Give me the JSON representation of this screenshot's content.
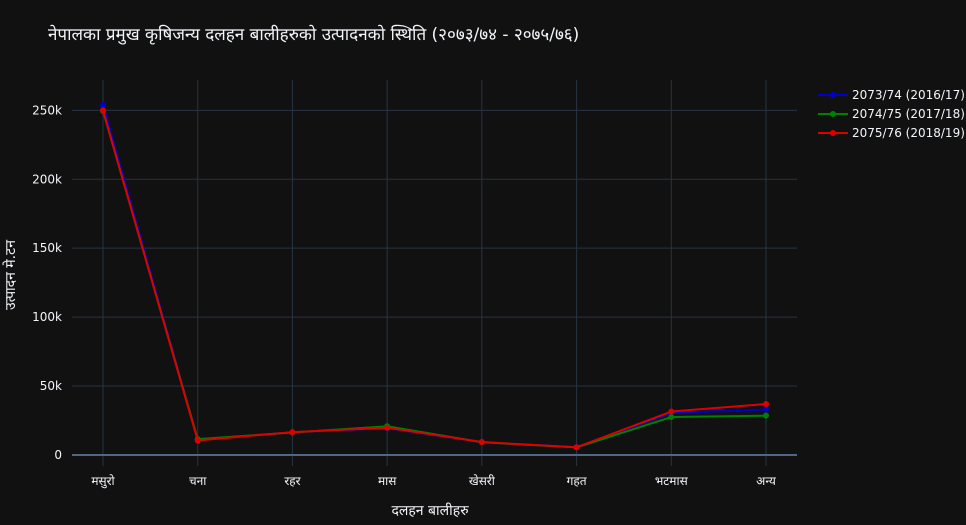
{
  "chart_data": {
    "type": "line",
    "title": "नेपालका प्रमुख कृषिजन्य दलहन बालीहरुको उत्पादनको स्थिति (२०७३/७४ - २०७५/७६)",
    "xlabel": "दलहन बालीहरु",
    "ylabel": "उत्पादन मे.टन",
    "categories": [
      "मसुरो",
      "चना",
      "रहर",
      "मास",
      "खेसरी",
      "गहत",
      "भटमास",
      "अन्य"
    ],
    "ylim": [
      -8000,
      272000
    ],
    "y_ticks": [
      0,
      50000,
      100000,
      150000,
      200000,
      250000
    ],
    "y_tick_labels": [
      "0",
      "50k",
      "100k",
      "150k",
      "200k",
      "250k"
    ],
    "grid": true,
    "legend_position": "top-right",
    "series": [
      {
        "name": "2073/74 (2016/17)",
        "color": "#0000cc",
        "values": [
          254000,
          11000,
          16500,
          19500,
          9300,
          5700,
          30500,
          33000
        ]
      },
      {
        "name": "2074/75 (2017/18)",
        "color": "#008000",
        "values": [
          249500,
          11500,
          16300,
          20800,
          9200,
          5500,
          27500,
          28500
        ]
      },
      {
        "name": "2075/76 (2018/19)",
        "color": "#dd0000",
        "values": [
          250000,
          10500,
          16600,
          19700,
          9400,
          5600,
          31500,
          37000
        ]
      }
    ]
  }
}
